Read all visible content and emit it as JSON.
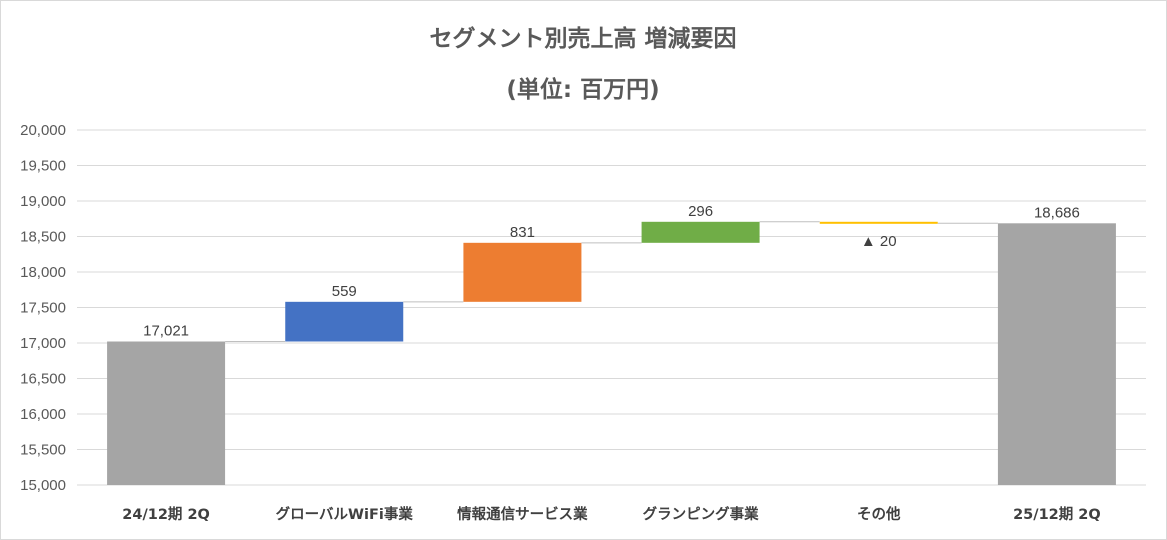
{
  "chart_data": {
    "type": "bar",
    "subtype": "waterfall",
    "title": "セグメント別売上高 増減要因",
    "subtitle": "(単位: 百万円)",
    "xlabel": "",
    "ylabel": "",
    "ylim": [
      15000,
      20000
    ],
    "ytick_step": 500,
    "yticks": [
      "20,000",
      "19,500",
      "19,000",
      "18,500",
      "18,000",
      "17,500",
      "17,000",
      "16,500",
      "16,000",
      "15,500",
      "15,000"
    ],
    "grid": true,
    "legend": "none",
    "categories": [
      "24/12期 2Q",
      "グローバルWiFi事業",
      "情報通信サービス業",
      "グランピング事業",
      "その他",
      "25/12期 2Q"
    ],
    "steps": [
      {
        "kind": "total",
        "value": 17021,
        "label": "17,021",
        "color": "#a5a5a5"
      },
      {
        "kind": "delta",
        "value": 559,
        "label": "559",
        "color": "#4472c4"
      },
      {
        "kind": "delta",
        "value": 831,
        "label": "831",
        "color": "#ed7d31"
      },
      {
        "kind": "delta",
        "value": 296,
        "label": "296",
        "color": "#70ad47"
      },
      {
        "kind": "delta",
        "value": -20,
        "label": "▲ 20",
        "color": "#ffc000"
      },
      {
        "kind": "total",
        "value": 18686,
        "label": "18,686",
        "color": "#a5a5a5"
      }
    ]
  }
}
